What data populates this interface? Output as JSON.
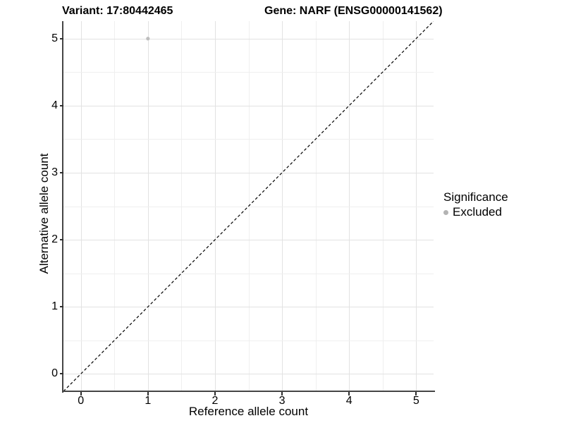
{
  "figure": {
    "title_left": "Variant: 17:80442465",
    "title_right": "Gene: NARF (ENSG00000141562)"
  },
  "axes": {
    "x": {
      "label": "Reference allele count",
      "tick_labels": [
        "0",
        "1",
        "2",
        "3",
        "4",
        "5"
      ]
    },
    "y": {
      "label": "Alternative allele count",
      "tick_labels": [
        "0",
        "1",
        "2",
        "3",
        "4",
        "5"
      ]
    }
  },
  "legend": {
    "title": "Significance",
    "items": [
      {
        "label": "Excluded",
        "marker_color": "#b3b3b3"
      }
    ]
  },
  "colors": {
    "axis_line": "#454545",
    "gridline_major": "#e2e2e2",
    "gridline_minor": "#efefef",
    "excluded_point": "#bdbdbd",
    "dashed_line": "#000000"
  },
  "chart_data": {
    "type": "scatter",
    "title": "Variant: 17:80442465 — Gene: NARF (ENSG00000141562)",
    "xlabel": "Reference allele count",
    "ylabel": "Alternative allele count",
    "xlim": [
      -0.26,
      5.26
    ],
    "ylim": [
      -0.26,
      5.26
    ],
    "x_ticks": [
      0,
      1,
      2,
      3,
      4,
      5
    ],
    "y_ticks": [
      0,
      1,
      2,
      3,
      4,
      5
    ],
    "grid": "major+minor",
    "legend_position": "right",
    "series": [
      {
        "name": "Excluded",
        "color": "#bdbdbd",
        "points": [
          {
            "x": 1,
            "y": 5
          }
        ]
      }
    ],
    "reference_line": {
      "type": "identity y=x",
      "style": "dashed",
      "color": "#000000",
      "dash": "4 3"
    }
  }
}
